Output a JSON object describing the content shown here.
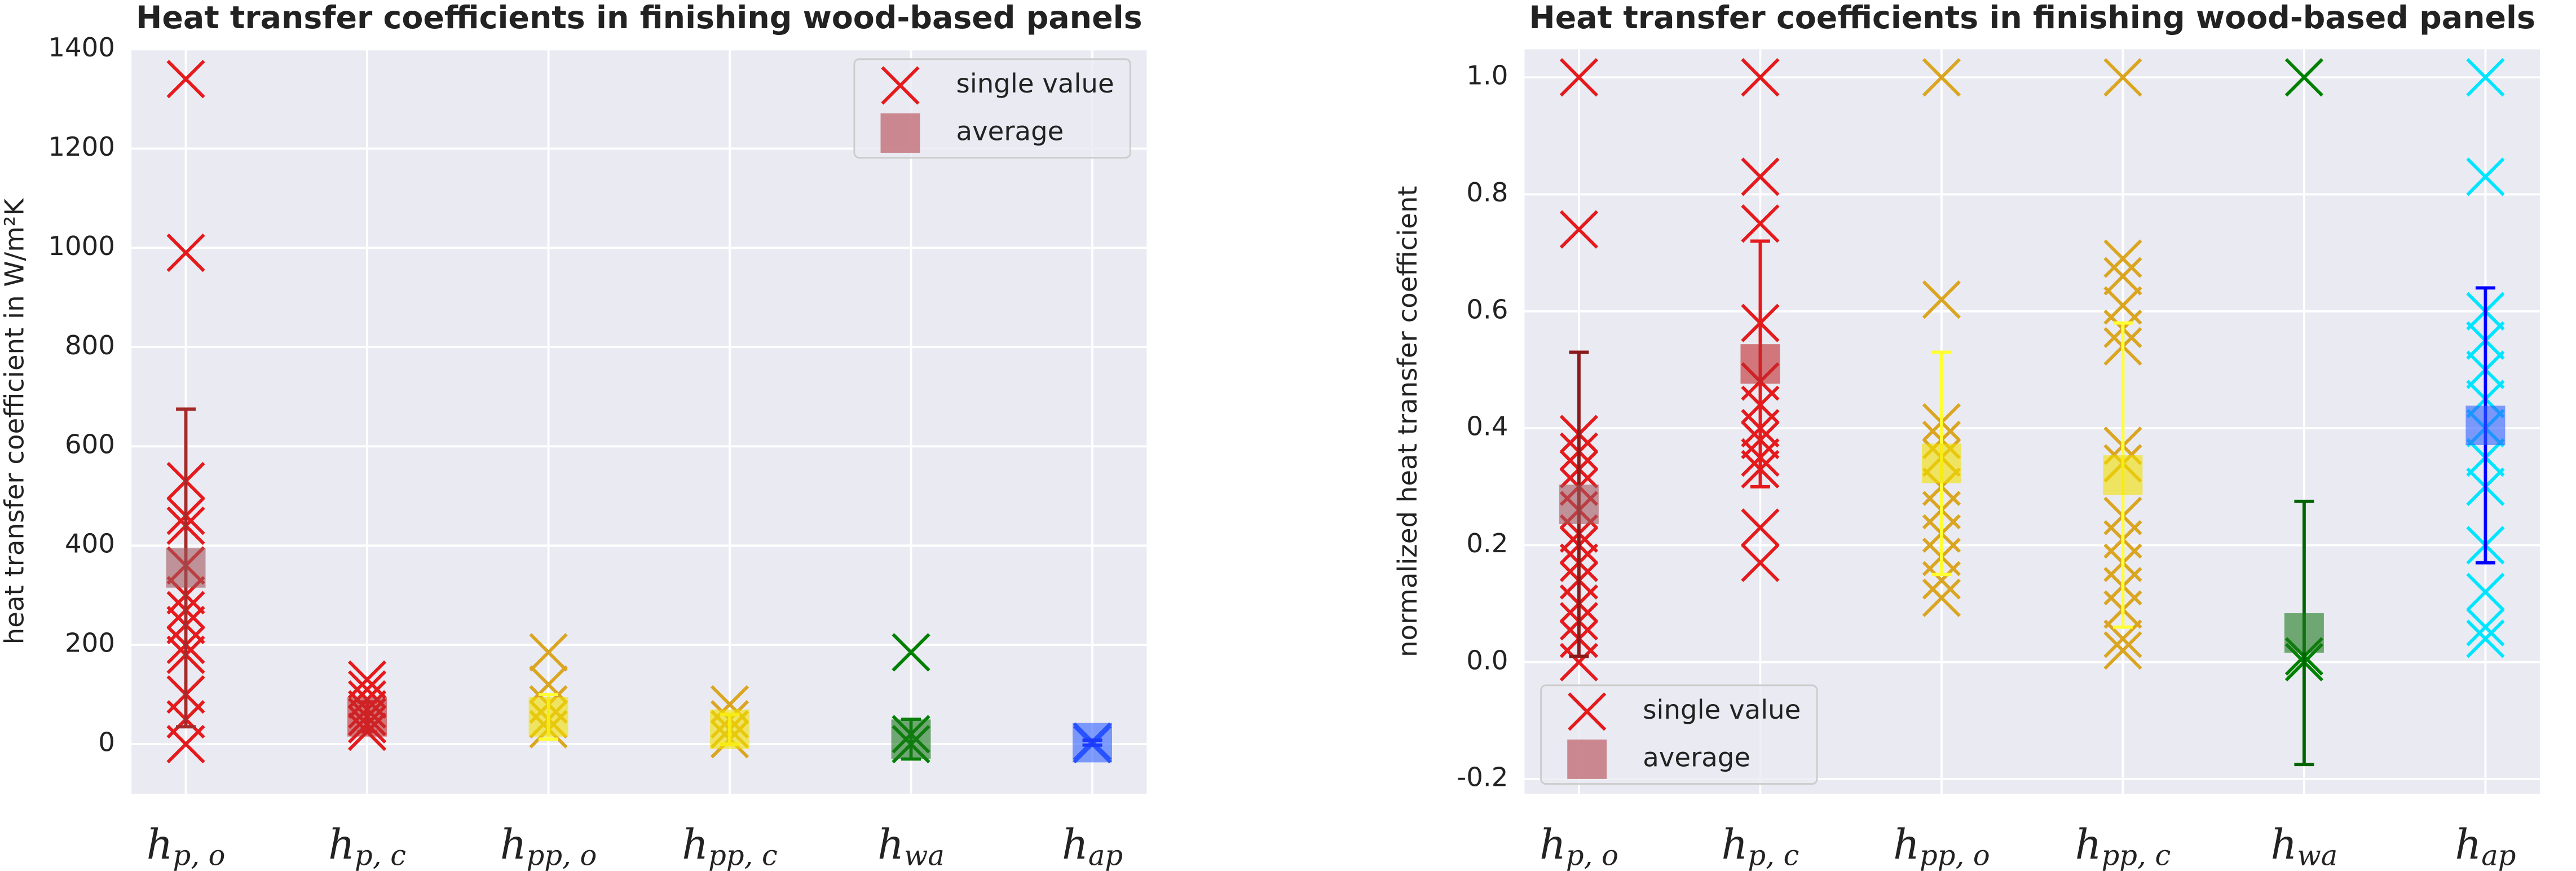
{
  "chart_data": [
    {
      "type": "scatter",
      "title": "Heat transfer coefficients in finishing wood-based panels",
      "ylabel": "heat transfer coefficient in W/m²K",
      "categories": [
        {
          "base": "h",
          "sub": "p, o"
        },
        {
          "base": "h",
          "sub": "p, c"
        },
        {
          "base": "h",
          "sub": "pp, o"
        },
        {
          "base": "h",
          "sub": "pp, c"
        },
        {
          "base": "h",
          "sub": "wa"
        },
        {
          "base": "h",
          "sub": "ap"
        }
      ],
      "ylim": [
        -100,
        1400
      ],
      "yticks": [
        0,
        200,
        400,
        600,
        800,
        1000,
        1200,
        1400
      ],
      "grid": true,
      "legend": "upper right",
      "series": [
        {
          "name": "single value",
          "marker": "x",
          "color": "#e41a1c",
          "colors": [
            "#e41a1c",
            "#e41a1c",
            "#daa520",
            "#daa520",
            "#008000",
            "#1f3fff"
          ],
          "values": [
            [
              1340,
              990,
              530,
              460,
              440,
              360,
              300,
              270,
              240,
              200,
              180,
              100,
              50,
              0
            ],
            [
              130,
              110,
              90,
              70,
              55,
              40,
              25
            ],
            [
              185,
              120,
              80,
              50,
              30
            ],
            [
              80,
              50,
              30,
              10
            ],
            [
              185,
              20,
              0
            ],
            [
              5,
              0
            ]
          ]
        },
        {
          "name": "average",
          "marker": "square",
          "color": "#bc5c64",
          "colors": [
            "#a0565c",
            "#c0282c",
            "#f2e000",
            "#f2e000",
            "#1a7a1a",
            "#2f5fff"
          ],
          "error_colors": [
            "#a52a2a",
            "#e41a1c",
            "#ffff33",
            "#ffff33",
            "#008000",
            "#0000ff"
          ],
          "values": [
            355,
            55,
            55,
            30,
            10,
            3
          ],
          "errors": [
            320,
            30,
            45,
            30,
            40,
            5
          ]
        }
      ]
    },
    {
      "type": "scatter",
      "title": "Heat transfer coefficients in finishing wood-based panels",
      "ylabel": "normalized heat transfer coefficient",
      "categories": [
        {
          "base": "h",
          "sub": "p, o"
        },
        {
          "base": "h",
          "sub": "p, c"
        },
        {
          "base": "h",
          "sub": "pp, o"
        },
        {
          "base": "h",
          "sub": "pp, c"
        },
        {
          "base": "h",
          "sub": "wa"
        },
        {
          "base": "h",
          "sub": "ap"
        }
      ],
      "ylim": [
        -0.225,
        1.048
      ],
      "yticks": [
        -0.2,
        {
          "value": 0,
          "label": "0.0"
        },
        0.2,
        0.4,
        0.6,
        0.8,
        {
          "value": 1,
          "label": "1.0"
        }
      ],
      "grid": true,
      "legend": "lower left",
      "series": [
        {
          "name": "single value",
          "marker": "x",
          "color": "#e41a1c",
          "colors": [
            "#e41a1c",
            "#e41a1c",
            "#daa520",
            "#daa520",
            "#008000",
            "#00e5ff"
          ],
          "values": [
            [
              1.0,
              0.74,
              0.39,
              0.36,
              0.33,
              0.3,
              0.26,
              0.22,
              0.2,
              0.17,
              0.14,
              0.1,
              0.07,
              0.04,
              0.0
            ],
            [
              1.0,
              0.83,
              0.75,
              0.58,
              0.48,
              0.44,
              0.4,
              0.38,
              0.35,
              0.33,
              0.23,
              0.17
            ],
            [
              1.0,
              0.62,
              0.41,
              0.38,
              0.35,
              0.3,
              0.26,
              0.22,
              0.18,
              0.14,
              0.11
            ],
            [
              1.0,
              0.69,
              0.66,
              0.61,
              0.57,
              0.54,
              0.37,
              0.34,
              0.25,
              0.21,
              0.17,
              0.13,
              0.09,
              0.04,
              0.02
            ],
            [
              1.0,
              0.01,
              0.0
            ],
            [
              1.0,
              0.83,
              0.6,
              0.55,
              0.5,
              0.45,
              0.4,
              0.35,
              0.3,
              0.2,
              0.12,
              0.06,
              0.04
            ]
          ]
        },
        {
          "name": "average",
          "marker": "square",
          "color": "#bc5c64",
          "colors": [
            "#a0565c",
            "#c0282c",
            "#f2e000",
            "#f2e000",
            "#1a7a1a",
            "#2f5fff"
          ],
          "error_colors": [
            "#8b1a1a",
            "#e41a1c",
            "#ffff33",
            "#ffff33",
            "#006400",
            "#0000ff"
          ],
          "values": [
            0.27,
            0.51,
            0.34,
            0.32,
            0.05,
            0.405
          ],
          "errors": [
            0.26,
            0.21,
            0.19,
            0.26,
            0.225,
            0.235
          ]
        }
      ]
    }
  ]
}
